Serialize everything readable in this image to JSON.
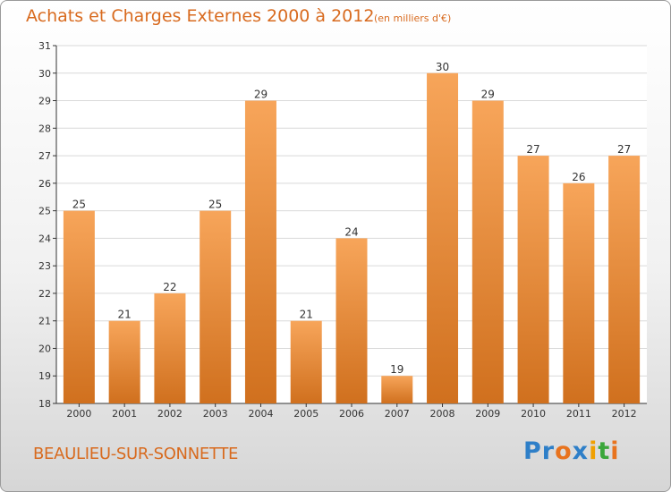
{
  "header": {
    "title": "Achats et Charges Externes 2000 à 2012",
    "subtitle": "(en milliers d'€)"
  },
  "footer": {
    "commune": "BEAULIEU-SUR-SONNETTE",
    "logo_parts": [
      "Pr",
      "o",
      "x",
      "i",
      "t",
      "i"
    ]
  },
  "colors": {
    "bar_top": "#f7a55a",
    "bar_bottom": "#d0701e",
    "title": "#d86a1e",
    "axis": "#333333",
    "grid": "#d9d9d9"
  },
  "chart_data": {
    "type": "bar",
    "title": "Achats et Charges Externes 2000 à 2012",
    "subtitle": "(en milliers d'€)",
    "categories": [
      "2000",
      "2001",
      "2002",
      "2003",
      "2004",
      "2005",
      "2006",
      "2007",
      "2008",
      "2009",
      "2010",
      "2011",
      "2012"
    ],
    "values": [
      25,
      21,
      22,
      25,
      29,
      21,
      24,
      19,
      30,
      29,
      27,
      26,
      27
    ],
    "ylim": [
      18,
      31
    ],
    "yticks": [
      18,
      19,
      20,
      21,
      22,
      23,
      24,
      25,
      26,
      27,
      28,
      29,
      30,
      31
    ],
    "grid": true,
    "data_labels": true
  }
}
